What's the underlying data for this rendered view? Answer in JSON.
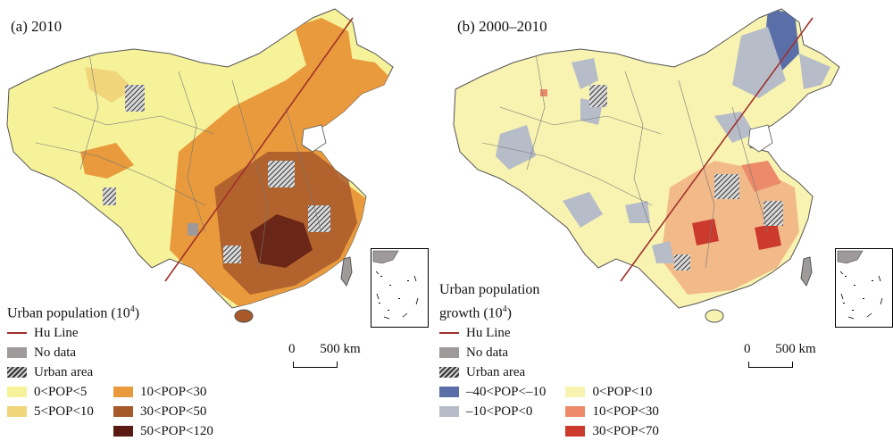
{
  "panels": [
    {
      "title": "(a) 2010",
      "legend_title": "Urban population (10",
      "legend_title_exp": "4",
      "legend_title_close": ")",
      "legend_left": [
        {
          "label": "Hu Line",
          "kind": "line",
          "color": "#a0302a"
        },
        {
          "label": "No data",
          "kind": "fill",
          "color": "#9e9a9a"
        },
        {
          "label": "Urban area",
          "kind": "hatch",
          "color": "#333333"
        },
        {
          "label": "0<POP<5",
          "kind": "fill",
          "color": "#f6f29a"
        },
        {
          "label": "5<POP<10",
          "kind": "fill",
          "color": "#f1d57a"
        }
      ],
      "legend_right": [
        {
          "label": "10<POP<30",
          "kind": "fill",
          "color": "#e89a3c"
        },
        {
          "label": "30<POP<50",
          "kind": "fill",
          "color": "#a8592a"
        },
        {
          "label": "50<POP<120",
          "kind": "fill",
          "color": "#5a1a12"
        }
      ],
      "scale": {
        "zero": "0",
        "label": "500 km"
      }
    },
    {
      "title": "(b) 2000–2010",
      "legend_title_line1": "Urban population",
      "legend_title": "growth (10",
      "legend_title_exp": "4",
      "legend_title_close": ")",
      "legend_left": [
        {
          "label": "Hu Line",
          "kind": "line",
          "color": "#a0302a"
        },
        {
          "label": "No data",
          "kind": "fill",
          "color": "#9e9a9a"
        },
        {
          "label": "Urban area",
          "kind": "hatch",
          "color": "#333333"
        },
        {
          "label": "–40<POP<–10",
          "kind": "fill",
          "color": "#5a6fa8"
        },
        {
          "label": "–10<POP<0",
          "kind": "fill",
          "color": "#b6bcc8"
        }
      ],
      "legend_right": [
        {
          "label": "0<POP<10",
          "kind": "fill",
          "color": "#f8f3b0"
        },
        {
          "label": "10<POP<30",
          "kind": "fill",
          "color": "#ec8a6a"
        },
        {
          "label": "30<POP<70",
          "kind": "fill",
          "color": "#cc3a2e"
        }
      ],
      "scale": {
        "zero": "0",
        "label": "500 km"
      }
    }
  ]
}
